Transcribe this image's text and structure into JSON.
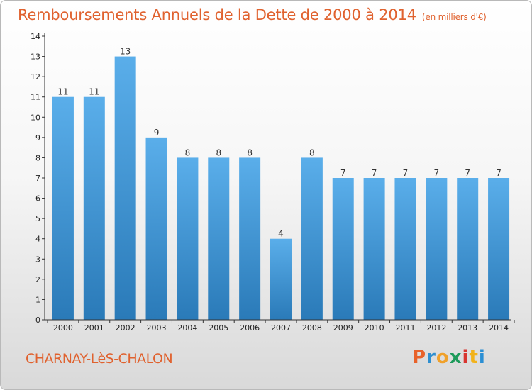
{
  "header": {
    "title": "Remboursements Annuels de la Dette de 2000 à 2014",
    "unit": "(en milliers d'€)"
  },
  "footer": {
    "commune": "CHARNAY-LèS-CHALON",
    "logo_text": "Proxiti"
  },
  "colors": {
    "title": "#e0622f",
    "bar_top": "#5aaeea",
    "bar_bottom": "#2a7ab8",
    "axis": "#333333"
  },
  "chart_data": {
    "type": "bar",
    "title": "Remboursements Annuels de la Dette de 2000 à 2014",
    "ylabel": "(en milliers d'€)",
    "categories": [
      "2000",
      "2001",
      "2002",
      "2003",
      "2004",
      "2005",
      "2006",
      "2007",
      "2008",
      "2009",
      "2010",
      "2011",
      "2012",
      "2013",
      "2014"
    ],
    "values": [
      11,
      11,
      13,
      9,
      8,
      8,
      8,
      4,
      8,
      7,
      7,
      7,
      7,
      7,
      7
    ],
    "ylim": [
      0,
      14
    ],
    "yticks": [
      0,
      1,
      2,
      3,
      4,
      5,
      6,
      7,
      8,
      9,
      10,
      11,
      12,
      13,
      14
    ],
    "grid": false,
    "data_labels": true
  }
}
